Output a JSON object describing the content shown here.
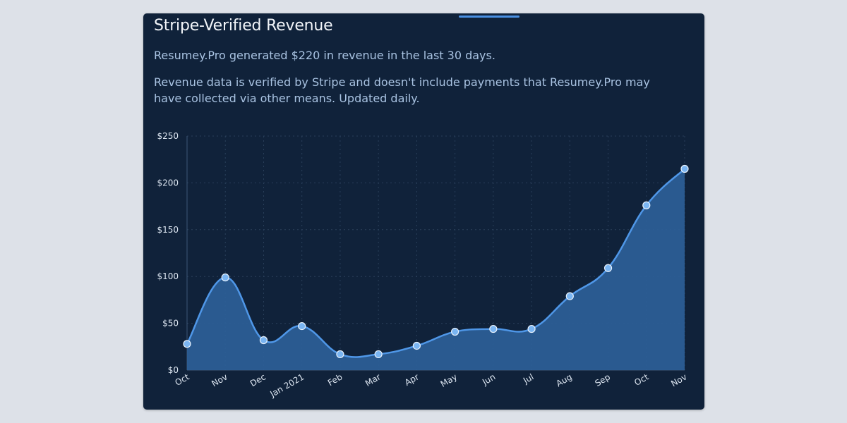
{
  "card": {
    "title": "Stripe-Verified Revenue",
    "summary": "Resumey.Pro generated $220 in revenue in the last 30 days.",
    "note": "Revenue data is verified by Stripe and doesn't include payments that Resumey.Pro may have collected via other means. Updated daily."
  },
  "colors": {
    "background": "#dde1e8",
    "card": "#10223a",
    "line": "#4f97e8",
    "area": "#2c5f98",
    "point": "#7ab5f2"
  },
  "chart_data": {
    "type": "area",
    "title": "",
    "xlabel": "",
    "ylabel": "",
    "categories": [
      "Oct",
      "Nov",
      "Dec",
      "Jan 2021",
      "Feb",
      "Mar",
      "Apr",
      "May",
      "Jun",
      "Jul",
      "Aug",
      "Sep",
      "Oct",
      "Nov"
    ],
    "series": [
      {
        "name": "Revenue",
        "values": [
          28,
          99,
          32,
          47,
          17,
          17,
          26,
          41,
          44,
          44,
          79,
          109,
          176,
          215
        ]
      }
    ],
    "ylim": [
      0,
      250
    ],
    "y_ticks": [
      0,
      50,
      100,
      150,
      200,
      250
    ],
    "y_tick_labels": [
      "$0",
      "$50",
      "$100",
      "$150",
      "$200",
      "$250"
    ],
    "grid": true,
    "legend": "none"
  }
}
